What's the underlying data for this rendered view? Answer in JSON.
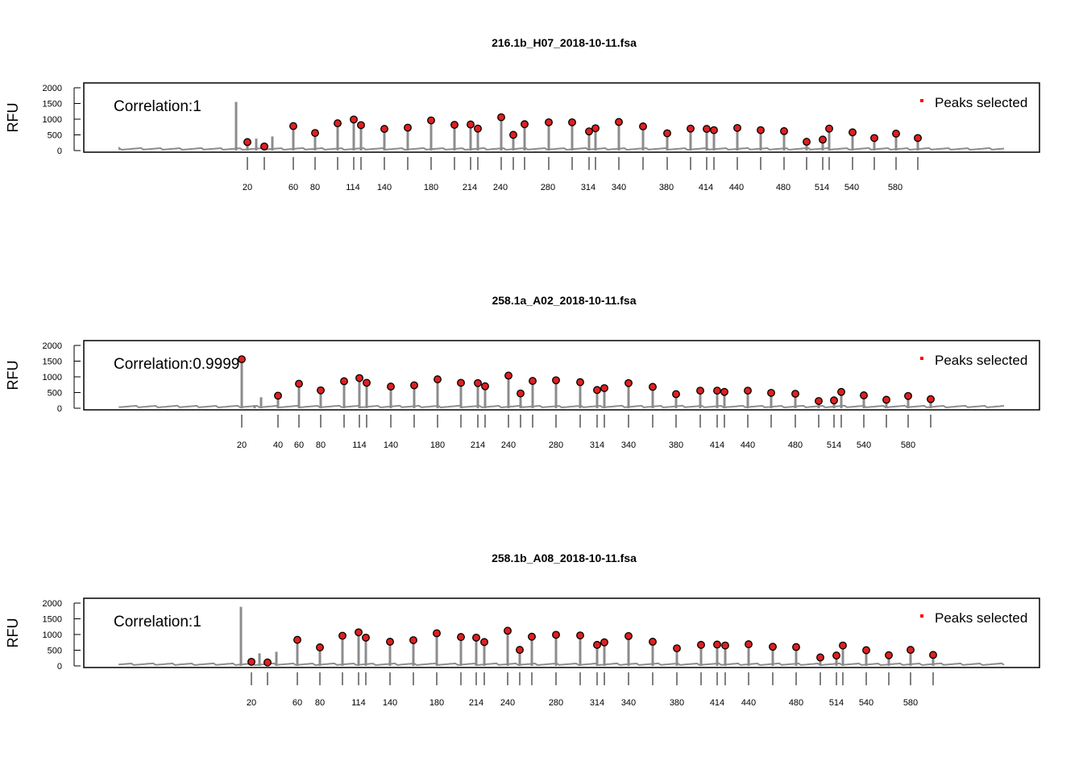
{
  "colors": {
    "trace": "#8c8c8c",
    "peak_fill": "#e02020",
    "peak_stroke": "#000000",
    "legend_marker": "#ff0000",
    "frame": "#000000"
  },
  "chart_data": [
    {
      "type": "line",
      "title": "216.1b_H07_2018-10-11.fsa",
      "ylabel": "RFU",
      "ylim": [
        0,
        2000
      ],
      "yticks": [
        0,
        500,
        1000,
        1500,
        2000
      ],
      "annotation": "Correlation:1",
      "legend": {
        "label": "Peaks selected",
        "position": "top-right"
      },
      "grid": false,
      "ladder_ticks": [
        20,
        25,
        60,
        67,
        81,
        95,
        114,
        121,
        140,
        160,
        180,
        200,
        214,
        225,
        240,
        250,
        260,
        280,
        300,
        314,
        320,
        340,
        360,
        380,
        400,
        414,
        425,
        440,
        460,
        480,
        500,
        514,
        525,
        540,
        560,
        580,
        600
      ],
      "ladder_labels": [
        "20",
        "60",
        "80",
        "114",
        "140",
        "180",
        "214",
        "240",
        "280",
        "314",
        "340",
        "380",
        "414",
        "440",
        "480",
        "514",
        "540",
        "580"
      ],
      "precursor_spikes": [
        [
          20,
          1550
        ],
        [
          22,
          380
        ],
        [
          25,
          450
        ]
      ],
      "peaks": [
        {
          "size": 20,
          "rfu": 270
        },
        {
          "size": 25,
          "rfu": 130
        },
        {
          "size": 60,
          "rfu": 780
        },
        {
          "size": 67,
          "rfu": 560
        },
        {
          "size": 81,
          "rfu": 870
        },
        {
          "size": 95,
          "rfu": 990
        },
        {
          "size": 114,
          "rfu": 810
        },
        {
          "size": 121,
          "rfu": 690
        },
        {
          "size": 140,
          "rfu": 730
        },
        {
          "size": 160,
          "rfu": 960
        },
        {
          "size": 180,
          "rfu": 820
        },
        {
          "size": 200,
          "rfu": 830
        },
        {
          "size": 214,
          "rfu": 700
        },
        {
          "size": 225,
          "rfu": 1060
        },
        {
          "size": 240,
          "rfu": 500
        },
        {
          "size": 250,
          "rfu": 840
        },
        {
          "size": 260,
          "rfu": 900
        },
        {
          "size": 280,
          "rfu": 900
        },
        {
          "size": 300,
          "rfu": 610
        },
        {
          "size": 314,
          "rfu": 710
        },
        {
          "size": 320,
          "rfu": 910
        },
        {
          "size": 340,
          "rfu": 770
        },
        {
          "size": 360,
          "rfu": 550
        },
        {
          "size": 380,
          "rfu": 700
        },
        {
          "size": 400,
          "rfu": 690
        },
        {
          "size": 414,
          "rfu": 650
        },
        {
          "size": 425,
          "rfu": 720
        },
        {
          "size": 440,
          "rfu": 650
        },
        {
          "size": 460,
          "rfu": 620
        },
        {
          "size": 480,
          "rfu": 280
        },
        {
          "size": 500,
          "rfu": 350
        },
        {
          "size": 514,
          "rfu": 700
        },
        {
          "size": 525,
          "rfu": 580
        },
        {
          "size": 540,
          "rfu": 400
        },
        {
          "size": 560,
          "rfu": 540
        },
        {
          "size": 580,
          "rfu": 400
        },
        {
          "size": 600,
          "rfu": 0
        }
      ]
    },
    {
      "type": "line",
      "title": "258.1a_A02_2018-10-11.fsa",
      "ylabel": "RFU",
      "ylim": [
        0,
        2000
      ],
      "yticks": [
        0,
        500,
        1000,
        1500,
        2000
      ],
      "annotation": "Correlation:0.9999",
      "legend": {
        "label": "Peaks selected",
        "position": "top-right"
      },
      "grid": false,
      "ladder_ticks": [
        20,
        40,
        60,
        80,
        100,
        114,
        120,
        140,
        160,
        180,
        200,
        214,
        220,
        240,
        250,
        260,
        280,
        300,
        314,
        320,
        340,
        360,
        380,
        400,
        414,
        420,
        440,
        460,
        480,
        500,
        514,
        520,
        540,
        560,
        580,
        600
      ],
      "ladder_labels": [
        "20",
        "40",
        "60",
        "80",
        "114",
        "140",
        "180",
        "214",
        "240",
        "280",
        "314",
        "340",
        "380",
        "414",
        "440",
        "480",
        "514",
        "540",
        "580"
      ],
      "precursor_spikes": [
        [
          20,
          1560
        ],
        [
          25,
          100
        ],
        [
          28,
          350
        ]
      ],
      "peaks": [
        {
          "size": 20,
          "rfu": 1560
        },
        {
          "size": 40,
          "rfu": 400
        },
        {
          "size": 60,
          "rfu": 780
        },
        {
          "size": 80,
          "rfu": 570
        },
        {
          "size": 100,
          "rfu": 860
        },
        {
          "size": 114,
          "rfu": 960
        },
        {
          "size": 120,
          "rfu": 810
        },
        {
          "size": 140,
          "rfu": 690
        },
        {
          "size": 160,
          "rfu": 730
        },
        {
          "size": 180,
          "rfu": 920
        },
        {
          "size": 200,
          "rfu": 810
        },
        {
          "size": 214,
          "rfu": 800
        },
        {
          "size": 220,
          "rfu": 700
        },
        {
          "size": 240,
          "rfu": 1040
        },
        {
          "size": 250,
          "rfu": 470
        },
        {
          "size": 260,
          "rfu": 870
        },
        {
          "size": 280,
          "rfu": 890
        },
        {
          "size": 300,
          "rfu": 830
        },
        {
          "size": 314,
          "rfu": 580
        },
        {
          "size": 320,
          "rfu": 640
        },
        {
          "size": 340,
          "rfu": 800
        },
        {
          "size": 360,
          "rfu": 680
        },
        {
          "size": 380,
          "rfu": 450
        },
        {
          "size": 400,
          "rfu": 560
        },
        {
          "size": 414,
          "rfu": 560
        },
        {
          "size": 420,
          "rfu": 520
        },
        {
          "size": 440,
          "rfu": 560
        },
        {
          "size": 460,
          "rfu": 490
        },
        {
          "size": 480,
          "rfu": 460
        },
        {
          "size": 500,
          "rfu": 230
        },
        {
          "size": 514,
          "rfu": 250
        },
        {
          "size": 520,
          "rfu": 520
        },
        {
          "size": 540,
          "rfu": 410
        },
        {
          "size": 560,
          "rfu": 270
        },
        {
          "size": 580,
          "rfu": 390
        },
        {
          "size": 600,
          "rfu": 290
        }
      ]
    },
    {
      "type": "line",
      "title": "258.1b_A08_2018-10-11.fsa",
      "ylabel": "RFU",
      "ylim": [
        0,
        2000
      ],
      "yticks": [
        0,
        500,
        1000,
        1500,
        2000
      ],
      "annotation": "Correlation:1",
      "legend": {
        "label": "Peaks selected",
        "position": "top-right"
      },
      "grid": false,
      "ladder_ticks": [
        20,
        27,
        60,
        80,
        100,
        114,
        120,
        140,
        160,
        180,
        200,
        214,
        220,
        240,
        250,
        260,
        280,
        300,
        314,
        320,
        340,
        360,
        380,
        400,
        414,
        420,
        440,
        460,
        480,
        500,
        514,
        520,
        540,
        560,
        580,
        600
      ],
      "ladder_labels": [
        "20",
        "60",
        "80",
        "114",
        "140",
        "180",
        "214",
        "240",
        "280",
        "314",
        "340",
        "380",
        "414",
        "440",
        "480",
        "514",
        "540",
        "580"
      ],
      "precursor_spikes": [
        [
          15,
          1880
        ],
        [
          21,
          400
        ],
        [
          25,
          450
        ]
      ],
      "peaks": [
        {
          "size": 20,
          "rfu": 130
        },
        {
          "size": 27,
          "rfu": 110
        },
        {
          "size": 60,
          "rfu": 830
        },
        {
          "size": 80,
          "rfu": 590
        },
        {
          "size": 100,
          "rfu": 960
        },
        {
          "size": 114,
          "rfu": 1070
        },
        {
          "size": 120,
          "rfu": 900
        },
        {
          "size": 140,
          "rfu": 770
        },
        {
          "size": 160,
          "rfu": 820
        },
        {
          "size": 180,
          "rfu": 1040
        },
        {
          "size": 200,
          "rfu": 920
        },
        {
          "size": 214,
          "rfu": 900
        },
        {
          "size": 220,
          "rfu": 760
        },
        {
          "size": 240,
          "rfu": 1120
        },
        {
          "size": 250,
          "rfu": 510
        },
        {
          "size": 260,
          "rfu": 930
        },
        {
          "size": 280,
          "rfu": 990
        },
        {
          "size": 300,
          "rfu": 970
        },
        {
          "size": 314,
          "rfu": 670
        },
        {
          "size": 320,
          "rfu": 750
        },
        {
          "size": 340,
          "rfu": 950
        },
        {
          "size": 360,
          "rfu": 770
        },
        {
          "size": 380,
          "rfu": 560
        },
        {
          "size": 400,
          "rfu": 670
        },
        {
          "size": 414,
          "rfu": 680
        },
        {
          "size": 420,
          "rfu": 650
        },
        {
          "size": 440,
          "rfu": 690
        },
        {
          "size": 460,
          "rfu": 610
        },
        {
          "size": 480,
          "rfu": 600
        },
        {
          "size": 500,
          "rfu": 270
        },
        {
          "size": 514,
          "rfu": 330
        },
        {
          "size": 520,
          "rfu": 650
        },
        {
          "size": 540,
          "rfu": 500
        },
        {
          "size": 560,
          "rfu": 340
        },
        {
          "size": 580,
          "rfu": 510
        },
        {
          "size": 600,
          "rfu": 350
        }
      ]
    }
  ]
}
